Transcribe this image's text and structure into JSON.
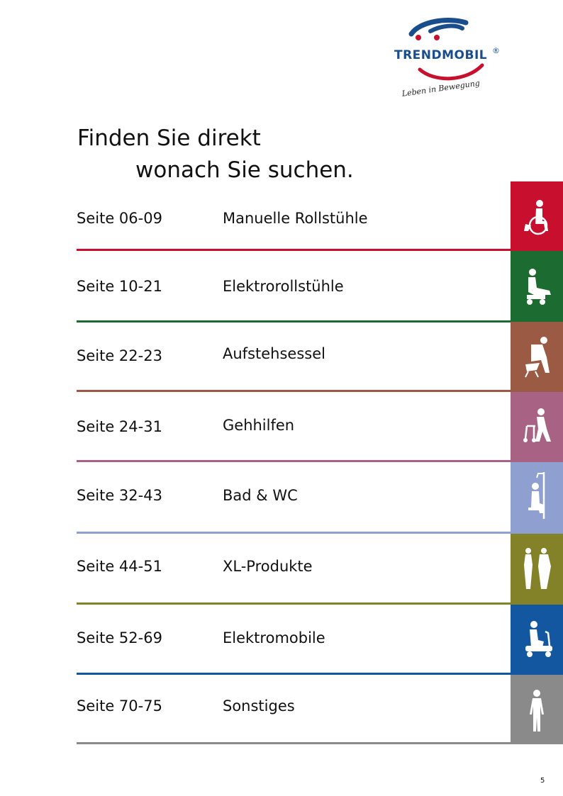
{
  "brand": {
    "name": "TRENDMOBIL",
    "registered": "®",
    "tagline": "Leben in Bewegung"
  },
  "title": {
    "line1": "Finden Sie direkt",
    "line2": "wonach Sie suchen."
  },
  "rows": [
    {
      "pages": "Seite 06-09",
      "category": "Manuelle Rollstühle",
      "color": "#c8102e",
      "icon": "wheelchair-icon"
    },
    {
      "pages": "Seite 10-21",
      "category": "Elektrorollstühle",
      "color": "#1c6b30",
      "icon": "electric-wheelchair-icon"
    },
    {
      "pages": "Seite 22-23",
      "category": "Aufstehsessel",
      "color": "#9b5a43",
      "icon": "lift-chair-icon"
    },
    {
      "pages": "Seite 24-31",
      "category": "Gehhilfen",
      "color": "#a86284",
      "icon": "walker-icon"
    },
    {
      "pages": "Seite 32-43",
      "category": "Bad & WC",
      "color": "#8f9fcf",
      "icon": "shower-seat-icon"
    },
    {
      "pages": "Seite 44-51",
      "category": "XL-Produkte",
      "color": "#838229",
      "icon": "xl-figures-icon"
    },
    {
      "pages": "Seite 52-69",
      "category": "Elektromobile",
      "color": "#1257a0",
      "icon": "scooter-icon"
    },
    {
      "pages": "Seite 70-75",
      "category": "Sonstiges",
      "color": "#8a8a8a",
      "icon": "standing-person-icon"
    }
  ],
  "page_number": "5"
}
